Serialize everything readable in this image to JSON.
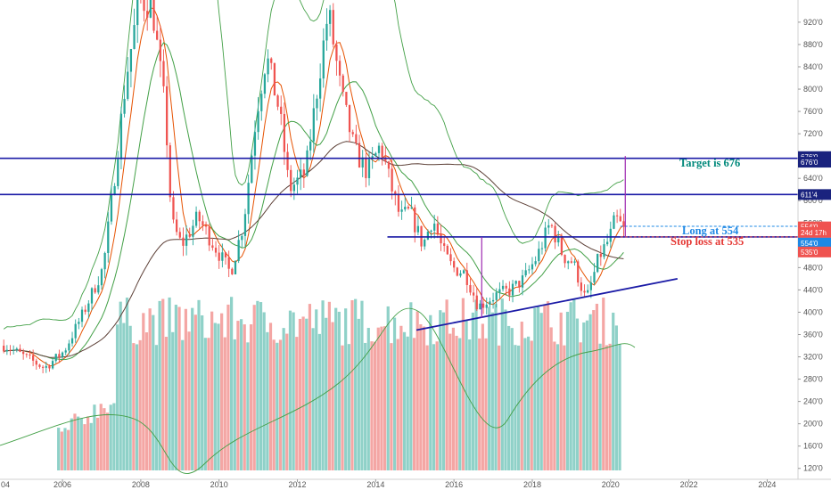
{
  "chart_data": {
    "type": "candlestick",
    "timeframe": "monthly",
    "x_ticks": [
      "04",
      "2006",
      "2008",
      "2010",
      "2012",
      "2014",
      "2016",
      "2018",
      "2020",
      "2022",
      "2024"
    ],
    "y_ticks": [
      "920'0",
      "880'0",
      "840'0",
      "800'0",
      "760'0",
      "720'0",
      "680'0",
      "640'0",
      "600'0",
      "560'0",
      "520'0",
      "480'0",
      "440'0",
      "400'0",
      "360'0",
      "320'0",
      "280'0",
      "240'0",
      "200'0",
      "160'0",
      "120'0"
    ],
    "ylim": [
      110,
      955
    ],
    "price_tags": [
      {
        "label": "676'0",
        "value": 679,
        "color": "#1a237e"
      },
      {
        "label": "676'0",
        "value": 669,
        "color": "#1a237e"
      },
      {
        "label": "611'4",
        "value": 611,
        "color": "#1a237e"
      },
      {
        "label": "554'0",
        "value": 553,
        "color": "#ef5350"
      },
      {
        "label": "24d 17h",
        "value": 543,
        "color": "#ef5350"
      },
      {
        "label": "554'0",
        "value": 524,
        "color": "#1e88e5"
      },
      {
        "label": "535'0",
        "value": 508,
        "color": "#ef5350"
      }
    ],
    "horizontal_lines": [
      {
        "name": "target",
        "value": 676,
        "color": "#1a1aa6"
      },
      {
        "name": "resistance",
        "value": 611,
        "color": "#1a1aa6"
      },
      {
        "name": "neckline",
        "value": 535,
        "color": "#1a1aa6"
      },
      {
        "name": "long-entry",
        "value": 554,
        "color": "#1e88e5",
        "dashed": true
      },
      {
        "name": "stop",
        "value": 535,
        "color": "#ef5350",
        "dashed": true
      }
    ],
    "trendline": {
      "from": [
        "2015-01",
        368
      ],
      "to": [
        "2021-09",
        460
      ]
    },
    "measure_lines": [
      {
        "x": "2016-09",
        "from": 390,
        "to": 535
      },
      {
        "x": "2020-05",
        "from": 535,
        "to": 680
      }
    ],
    "annotations": [
      {
        "text": "Target is 676",
        "color": "#00897b"
      },
      {
        "text": "Long at 554",
        "color": "#1e88e5"
      },
      {
        "text": "Stop loss at 535",
        "color": "#e53935"
      }
    ],
    "series": [
      {
        "name": "",
        "kind": "moving-average",
        "color": "#e65100"
      },
      {
        "name": "",
        "kind": "moving-average",
        "color": "#43a047"
      },
      {
        "name": "",
        "kind": "moving-average",
        "color": "#5d4037"
      },
      {
        "name": "",
        "kind": "volume",
        "color": "#26a69a"
      }
    ],
    "prices": [
      [
        "2004-07",
        340
      ],
      [
        "2005-01",
        320
      ],
      [
        "2005-07",
        300
      ],
      [
        "2006-01",
        330
      ],
      [
        "2006-07",
        400
      ],
      [
        "2007-01",
        480
      ],
      [
        "2007-04",
        620
      ],
      [
        "2007-08",
        820
      ],
      [
        "2007-12",
        960
      ],
      [
        "2008-04",
        950
      ],
      [
        "2008-08",
        760
      ],
      [
        "2008-10",
        560
      ],
      [
        "2009-01",
        520
      ],
      [
        "2009-06",
        570
      ],
      [
        "2009-12",
        510
      ],
      [
        "2010-04",
        470
      ],
      [
        "2010-08",
        560
      ],
      [
        "2010-12",
        760
      ],
      [
        "2011-03",
        860
      ],
      [
        "2011-07",
        760
      ],
      [
        "2011-10",
        620
      ],
      [
        "2012-03",
        650
      ],
      [
        "2012-08",
        860
      ],
      [
        "2012-10",
        940
      ],
      [
        "2013-02",
        790
      ],
      [
        "2013-06",
        690
      ],
      [
        "2013-10",
        650
      ],
      [
        "2014-02",
        700
      ],
      [
        "2014-05",
        630
      ],
      [
        "2014-08",
        570
      ],
      [
        "2014-11",
        580
      ],
      [
        "2015-03",
        520
      ],
      [
        "2015-06",
        570
      ],
      [
        "2015-09",
        510
      ],
      [
        "2015-12",
        480
      ],
      [
        "2016-04",
        470
      ],
      [
        "2016-08",
        410
      ],
      [
        "2017-01",
        430
      ],
      [
        "2017-06",
        440
      ],
      [
        "2017-10",
        460
      ],
      [
        "2018-02",
        500
      ],
      [
        "2018-06",
        560
      ],
      [
        "2018-10",
        500
      ],
      [
        "2019-01",
        490
      ],
      [
        "2019-05",
        420
      ],
      [
        "2019-09",
        500
      ],
      [
        "2019-12",
        530
      ],
      [
        "2020-02",
        568
      ],
      [
        "2020-04",
        553
      ]
    ],
    "volume_bars": 190
  }
}
